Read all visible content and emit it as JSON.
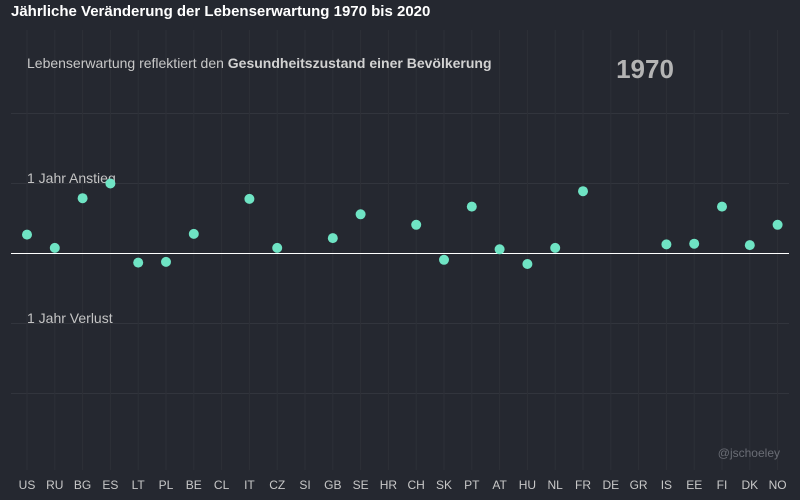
{
  "chart_data": {
    "type": "scatter",
    "title": "Jährliche Veränderung der Lebenserwartung 1970 bis 2020",
    "subtitle_prefix": "Lebenserwartung reflektiert den ",
    "subtitle_bold": "Gesundheitszustand einer Bevölkerung",
    "year_label": "1970",
    "annotation_gain": "1 Jahr Anstieg",
    "annotation_loss": "1 Jahr Verlust",
    "credit": "@jschoeley",
    "ylim": [
      -2,
      2
    ],
    "grid": true,
    "point_color": "#6fe4c4",
    "categories": [
      "US",
      "RU",
      "BG",
      "ES",
      "LT",
      "PL",
      "BE",
      "CL",
      "IT",
      "CZ",
      "SI",
      "GB",
      "SE",
      "HR",
      "CH",
      "SK",
      "PT",
      "AT",
      "HU",
      "NL",
      "FR",
      "DE",
      "GR",
      "IS",
      "EE",
      "FI",
      "DK",
      "NO"
    ],
    "values": [
      0.27,
      0.08,
      0.79,
      1.0,
      -0.13,
      -0.12,
      0.28,
      null,
      0.78,
      0.08,
      null,
      0.22,
      0.56,
      null,
      0.41,
      -0.09,
      0.67,
      0.06,
      -0.15,
      0.08,
      0.89,
      null,
      null,
      0.13,
      0.14,
      0.67,
      0.12,
      0.41
    ]
  }
}
